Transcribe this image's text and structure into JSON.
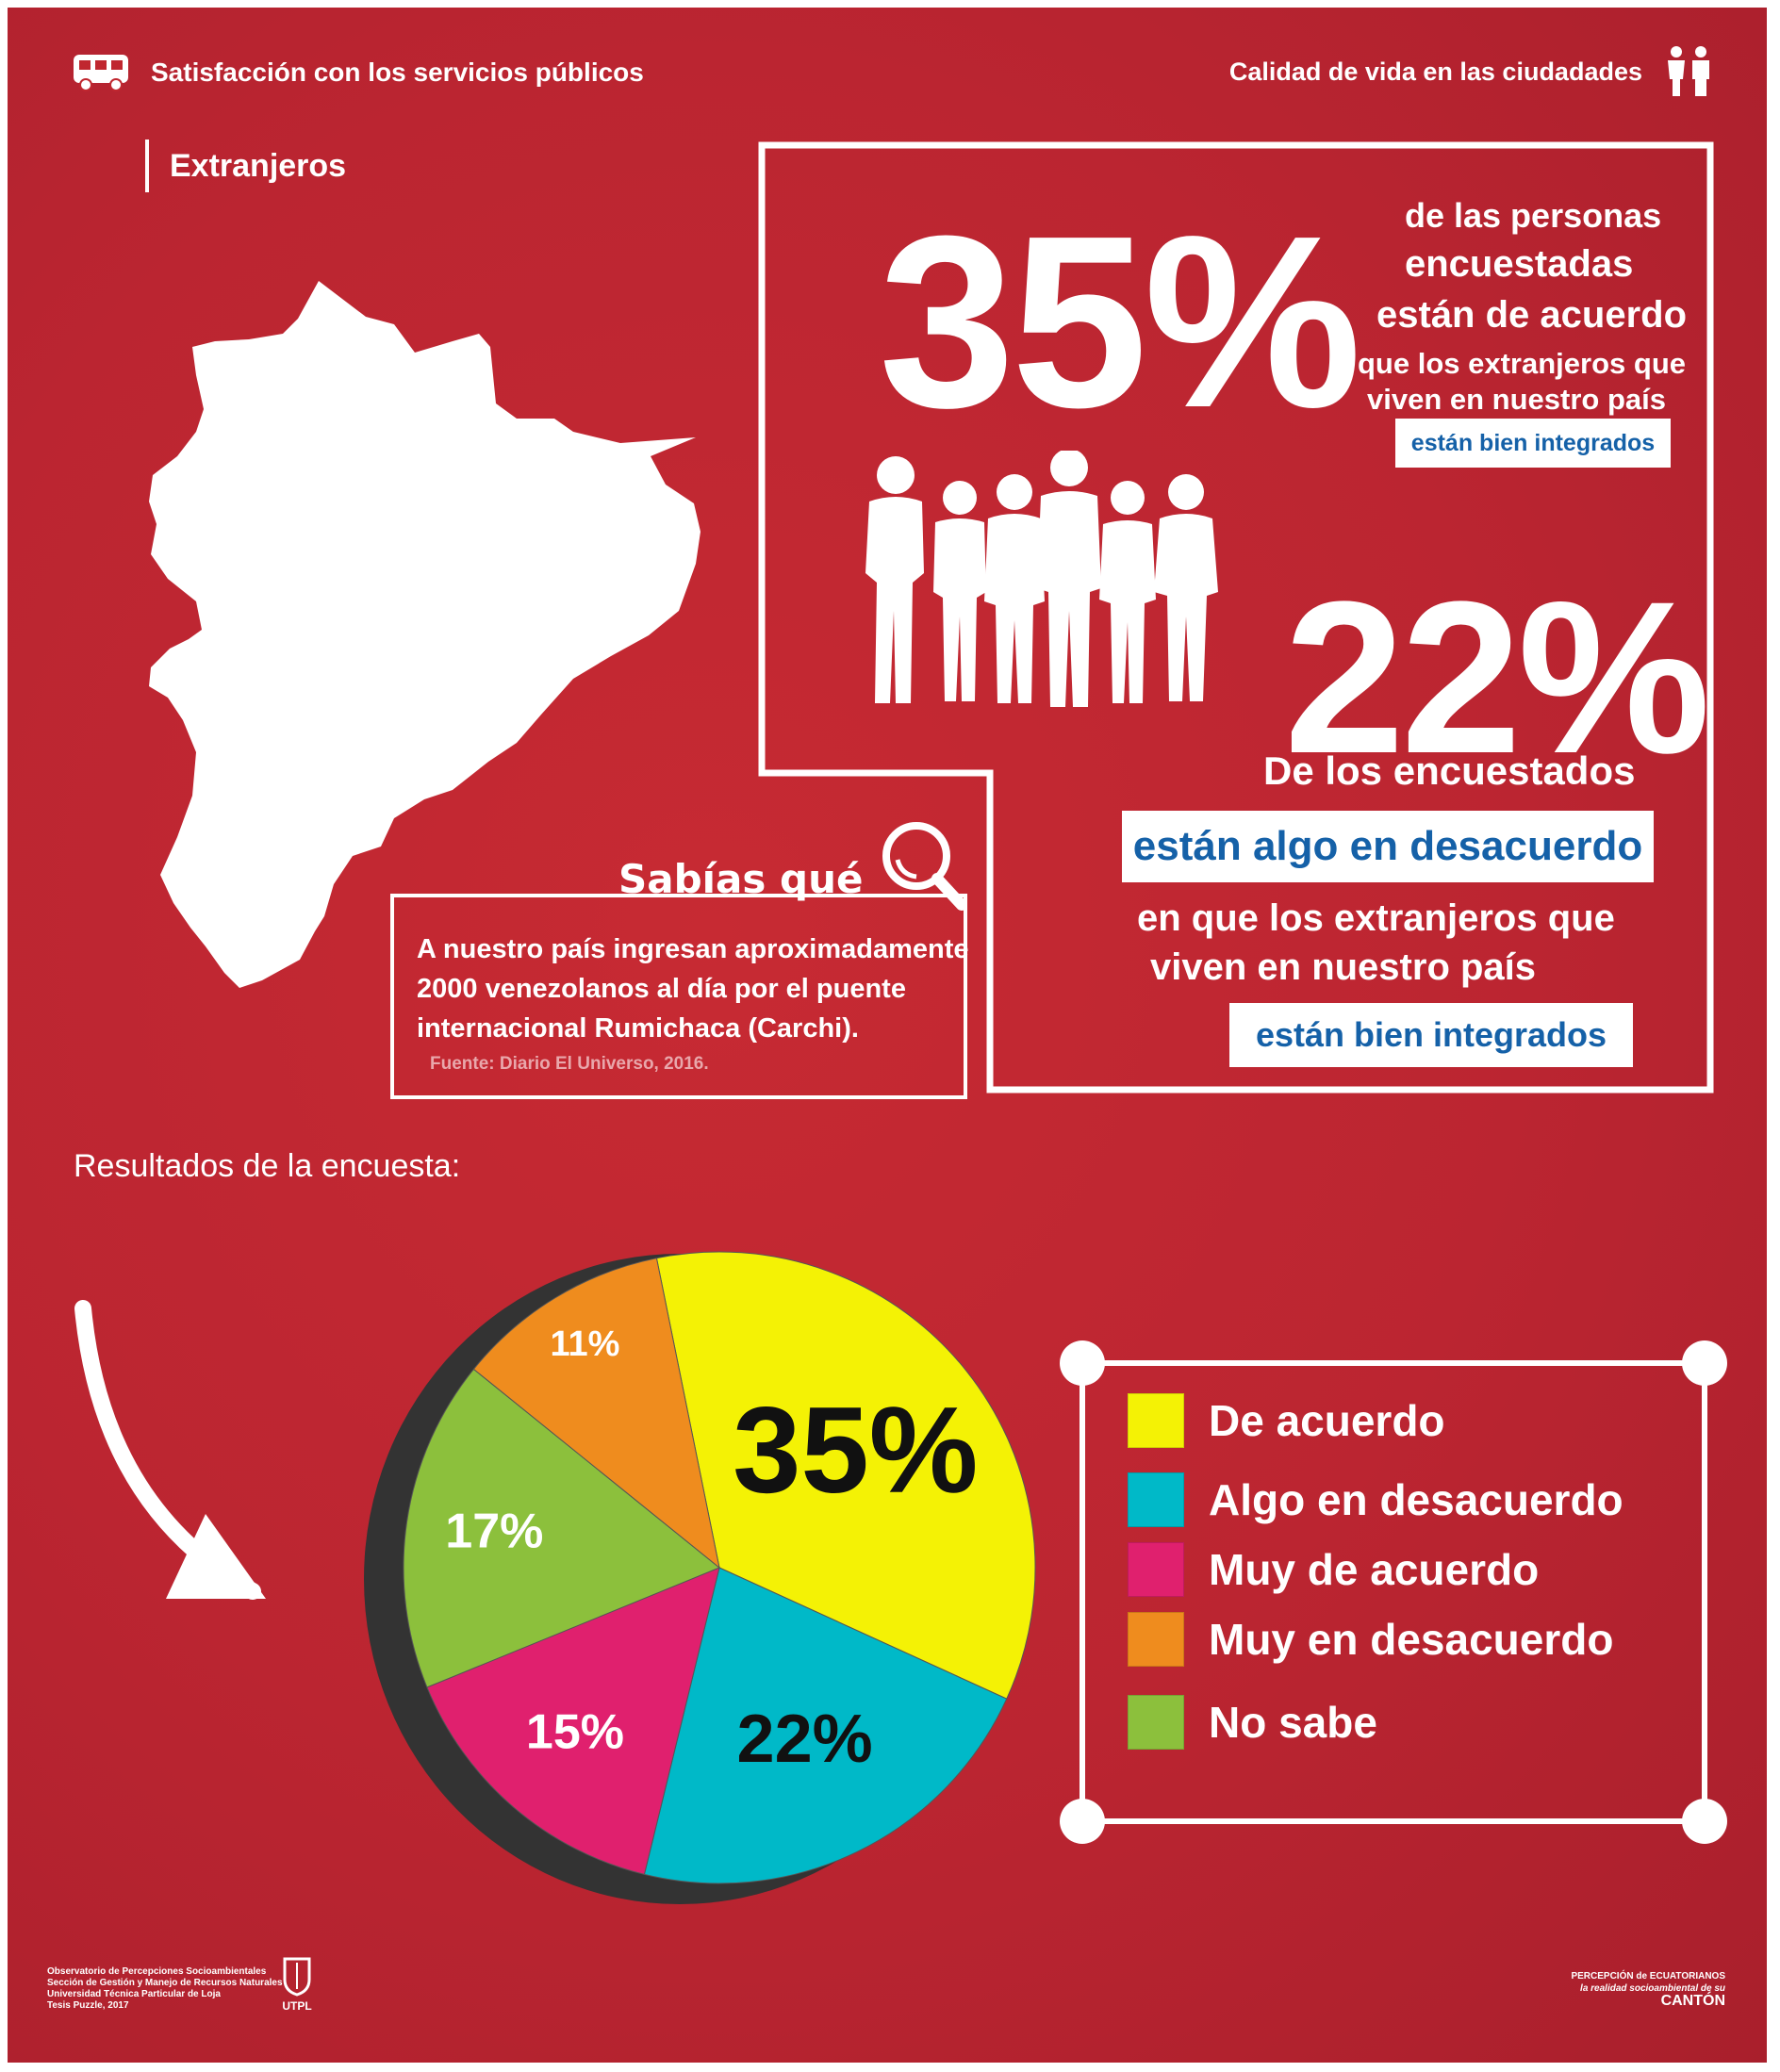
{
  "header": {
    "left_title": "Satisfacción con los servicios públicos",
    "right_title": "Calidad de vida en las ciudadades"
  },
  "section_title": "Extranjeros",
  "stat1": {
    "value": "35%",
    "line1": "de las personas",
    "line2": "encuestadas",
    "line3": "están de acuerdo",
    "line4": "que los extranjeros que",
    "line5": "viven en nuestro país",
    "tag": "están bien integrados"
  },
  "stat2": {
    "value": "22%",
    "line1": "De los encuestados",
    "tag1": "están algo en desacuerdo",
    "line2": "en que los extranjeros que",
    "line3": "viven en nuestro país",
    "tag2": "están bien integrados"
  },
  "fact": {
    "title": "Sabías qué",
    "text": "A nuestro país ingresan aproximadamente 2000 venezolanos al día por el puente internacional Rumichaca (Carchi).",
    "source": "Fuente: Diario El Universo, 2016."
  },
  "results_label": "Resultados de la encuesta:",
  "chart_data": {
    "type": "pie",
    "title": "",
    "slices": [
      {
        "name": "De acuerdo",
        "value": 35,
        "label": "35%",
        "color": "#f4f205"
      },
      {
        "name": "Algo en desacuerdo",
        "value": 22,
        "label": "22%",
        "color": "#00b9c8"
      },
      {
        "name": "Muy de acuerdo",
        "value": 15,
        "label": "15%",
        "color": "#e0206e"
      },
      {
        "name": "No sabe",
        "value": 17,
        "label": "17%",
        "color": "#8cc03c"
      },
      {
        "name": "Muy en desacuerdo",
        "value": 11,
        "label": "11%",
        "color": "#ef8c1e"
      }
    ],
    "legend": [
      {
        "label": "De acuerdo",
        "color": "#f4f205"
      },
      {
        "label": "Algo en desacuerdo",
        "color": "#00b9c8"
      },
      {
        "label": "Muy de acuerdo",
        "color": "#e0206e"
      },
      {
        "label": "Muy en desacuerdo",
        "color": "#ef8c1e"
      },
      {
        "label": "No sabe",
        "color": "#8cc03c"
      }
    ],
    "legend_position": "right"
  },
  "footer": {
    "left_line1": "Observatorio de Percepciones Socioambientales",
    "left_line2": "Sección de Gestión y Manejo de Recursos Naturales",
    "left_line3": "Universidad Técnica Particular de Loja",
    "left_line4": "Tesis Puzzle, 2017",
    "utpl": "UTPL",
    "right_line1": "PERCEPCIÓN de ECUATORIANOS",
    "right_line2": "la realidad socioambiental de su",
    "right_line3": "CANTÓN"
  },
  "icons": [
    "bus-icon",
    "people-icon",
    "ecuador-map",
    "crowd-silhouette",
    "magnifier-icon",
    "curved-arrow",
    "utpl-logo"
  ]
}
